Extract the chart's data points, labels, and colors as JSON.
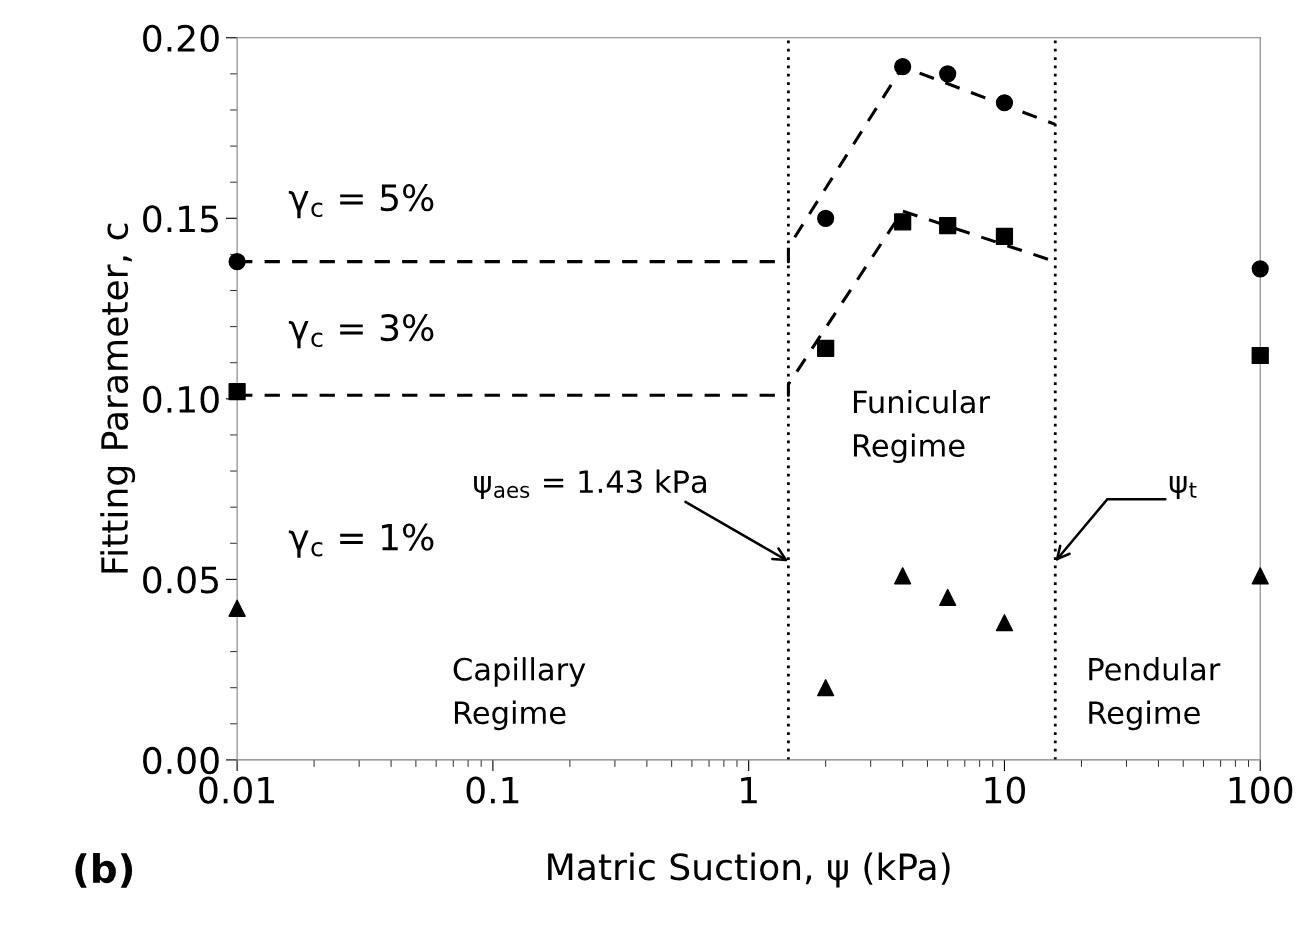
{
  "chart_data": {
    "type": "scatter",
    "xlabel": "Matric Suction, ψ (kPa)",
    "ylabel": "Fitting Parameter, c",
    "log": "x",
    "xlim": [
      0.01,
      100
    ],
    "xticks": [
      0.01,
      0.1,
      1,
      10,
      100
    ],
    "ylim": [
      0,
      0.2
    ],
    "yticks": [
      {
        "value": 0,
        "label": "0.00"
      },
      {
        "value": 0.05,
        "label": "0.05"
      },
      {
        "value": 0.1,
        "label": "0.10"
      },
      {
        "value": 0.15,
        "label": "0.15"
      },
      {
        "value": 0.2,
        "label": "0.20"
      }
    ],
    "grid": false,
    "legend": false,
    "series": [
      {
        "marker": "circle",
        "color": "#000000",
        "x": [
          0.01,
          2,
          4,
          6,
          10,
          100
        ],
        "values": [
          0.138,
          0.15,
          0.192,
          0.19,
          0.182,
          0.136
        ]
      },
      {
        "marker": "square",
        "color": "#000000",
        "x": [
          0.01,
          2,
          4,
          6,
          10,
          100
        ],
        "values": [
          0.102,
          0.114,
          0.149,
          0.148,
          0.145,
          0.112
        ]
      },
      {
        "marker": "triangle",
        "color": "#000000",
        "x": [
          0.01,
          2,
          4,
          6,
          10,
          100
        ],
        "values": [
          0.042,
          0.02,
          0.051,
          0.045,
          0.038,
          0.051
        ]
      },
      {
        "type": "line",
        "line_style": "dashed",
        "marker": "none",
        "color": "#000000",
        "x": [
          0.01,
          1.43,
          1.43,
          4,
          15.8
        ],
        "values": [
          0.138,
          0.138,
          0.142,
          0.192,
          0.176
        ]
      },
      {
        "type": "line",
        "line_style": "dashed",
        "marker": "none",
        "color": "#000000",
        "x": [
          0.01,
          1.43,
          1.43,
          4,
          15.8
        ],
        "values": [
          0.101,
          0.101,
          0.104,
          0.152,
          0.138
        ]
      }
    ],
    "ref_lines": [
      {
        "axis": "x",
        "value": 1.43,
        "line_style": "dotted",
        "color": "#000000"
      },
      {
        "axis": "x",
        "value": 15.8,
        "line_style": "dotted",
        "color": "#000000"
      }
    ],
    "annotations": [
      "γ$_{c}$ = 5%",
      "γ$_{c}$ = 3%",
      "γ$_{c}$ = 1%",
      {
        "text": "ψ$_{aes}$ = 1.43 kPa",
        "x": 1.43,
        "y": 0.055
      },
      {
        "text": "ψ$_{t}$",
        "x": 15.8,
        "y": 0.055
      },
      "Capillary\nRegime",
      "Funicular\nRegime",
      "Pendular\nRegime",
      "(b)"
    ]
  }
}
